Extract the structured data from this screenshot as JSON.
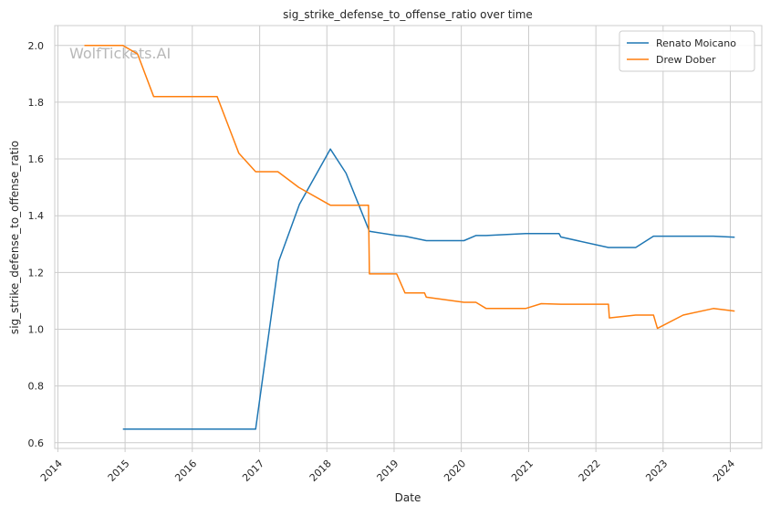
{
  "chart_data": {
    "type": "line",
    "title": "sig_strike_defense_to_offense_ratio over time",
    "xlabel": "Date",
    "ylabel": "sig_strike_defense_to_offense_ratio",
    "watermark": "WolfTickets.AI",
    "x_ticks": [
      "2014",
      "2015",
      "2016",
      "2017",
      "2018",
      "2019",
      "2020",
      "2021",
      "2022",
      "2023",
      "2024"
    ],
    "y_ticks": [
      "0.6",
      "0.8",
      "1.0",
      "1.2",
      "1.4",
      "1.6",
      "1.8",
      "2.0"
    ],
    "xlim": [
      "2013-12-15",
      "2024-06-20"
    ],
    "ylim": [
      0.58,
      2.07
    ],
    "grid": true,
    "legend_position": "top-right",
    "series": [
      {
        "name": "Renato Moicano",
        "color": "#1f77b4",
        "x": [
          "2014-12-20",
          "2016-12-10",
          "2017-04-15",
          "2017-08-05",
          "2018-01-20",
          "2018-04-15",
          "2018-08-20",
          "2019-01-15",
          "2019-03-01",
          "2019-06-25",
          "2020-01-15",
          "2020-03-20",
          "2020-05-15",
          "2020-12-15",
          "2021-06-15",
          "2021-06-25",
          "2022-03-10",
          "2022-08-05",
          "2022-11-10",
          "2023-10-01",
          "2024-01-25"
        ],
        "y": [
          0.648,
          0.648,
          1.24,
          1.44,
          1.635,
          1.55,
          1.345,
          1.33,
          1.328,
          1.312,
          1.312,
          1.33,
          1.33,
          1.337,
          1.337,
          1.325,
          1.288,
          1.288,
          1.328,
          1.328,
          1.324
        ]
      },
      {
        "name": "Drew Dober",
        "color": "#ff7f0e",
        "x": [
          "2014-05-25",
          "2014-12-20",
          "2015-03-10",
          "2015-06-05",
          "2016-05-15",
          "2016-09-10",
          "2016-12-10",
          "2017-04-10",
          "2017-08-01",
          "2018-01-20",
          "2018-08-15",
          "2018-08-20",
          "2019-01-15",
          "2019-03-01",
          "2019-06-15",
          "2019-06-25",
          "2020-01-15",
          "2020-03-20",
          "2020-05-15",
          "2020-12-15",
          "2021-03-10",
          "2021-06-25",
          "2022-03-10",
          "2022-03-15",
          "2022-08-05",
          "2022-11-10",
          "2022-12-01",
          "2023-04-20",
          "2023-10-01",
          "2024-01-25"
        ],
        "y": [
          2.0,
          2.0,
          1.97,
          1.82,
          1.82,
          1.62,
          1.555,
          1.555,
          1.5,
          1.437,
          1.437,
          1.195,
          1.195,
          1.128,
          1.128,
          1.113,
          1.095,
          1.095,
          1.073,
          1.073,
          1.09,
          1.088,
          1.088,
          1.04,
          1.05,
          1.05,
          1.003,
          1.05,
          1.073,
          1.064
        ]
      }
    ]
  }
}
